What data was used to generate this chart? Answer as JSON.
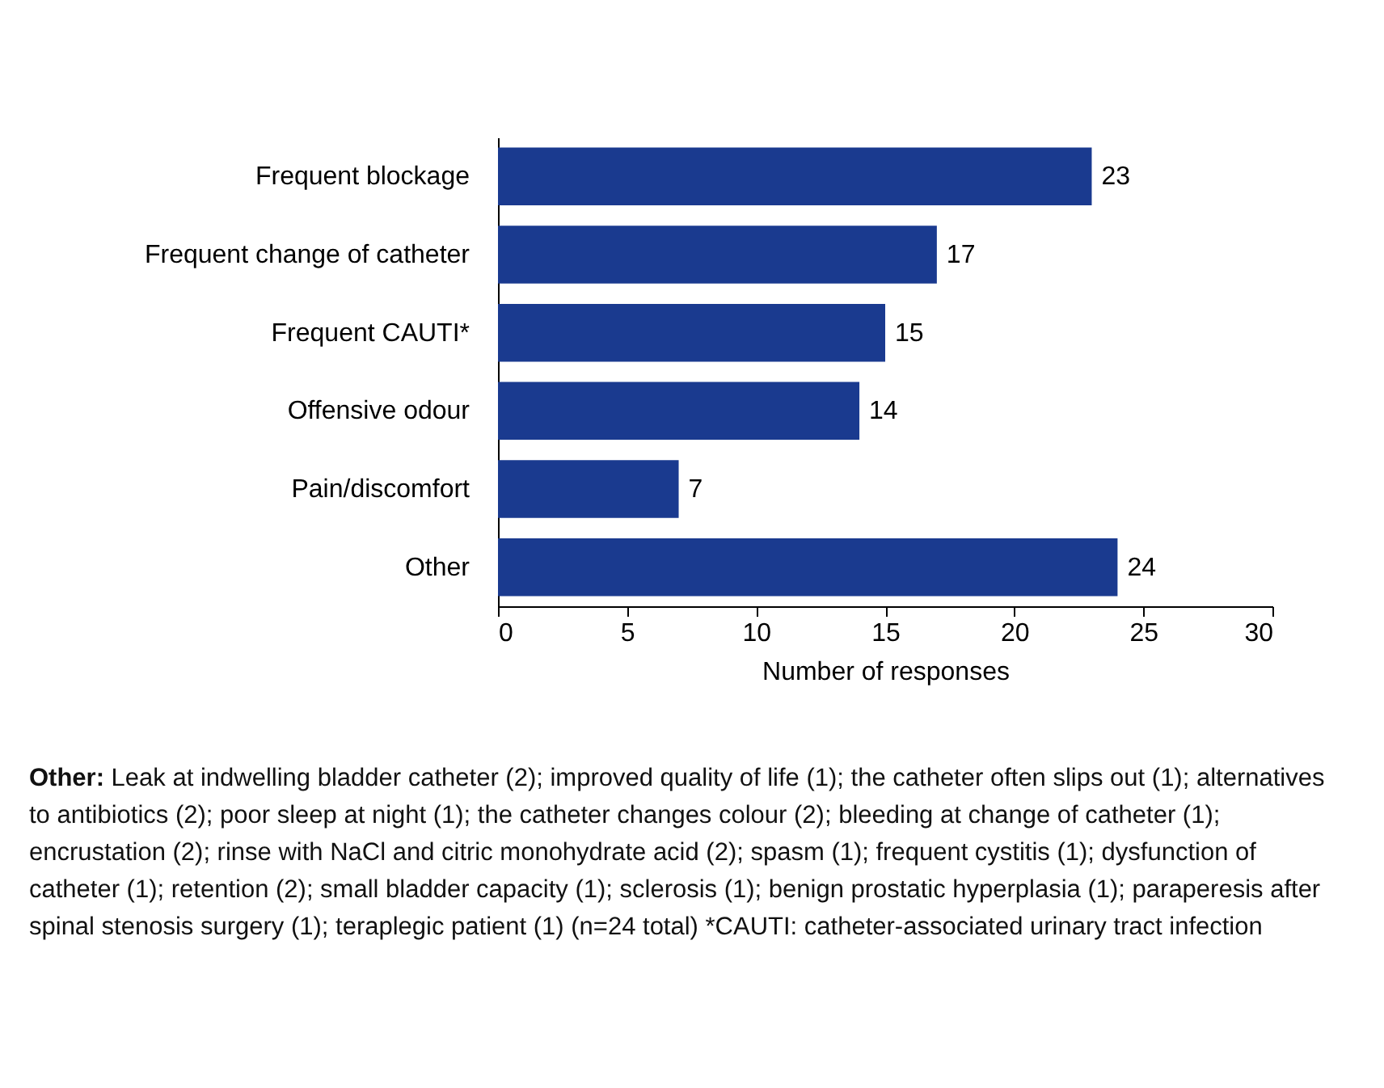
{
  "chart_data": {
    "type": "bar",
    "orientation": "horizontal",
    "xlabel": "Number of responses",
    "categories": [
      "Frequent blockage",
      "Frequent change of catheter",
      "Frequent CAUTI*",
      "Offensive odour",
      "Pain/discomfort",
      "Other"
    ],
    "values": [
      23,
      17,
      15,
      14,
      7,
      24
    ],
    "color": "#1a3a8f",
    "data_labels": true,
    "grid": false,
    "xlim": [
      0,
      30
    ],
    "xticks": [
      0,
      5,
      10,
      15,
      20,
      25,
      30
    ],
    "annotations": [
      "Other: Leak at indwelling bladder catheter (2); improved quality of life (1); the catheter often slips out (1); alternatives to antibiotics (2); poor sleep at night (1); the catheter changes colour (2); bleeding at change of catheter (1); encrustation (2); rinse with NaCl and citric monohydrate acid (2); spasm (1); frequent cystitis (1); dysfunction of catheter (1); retention (2); small bladder capacity (1); sclerosis (1); benign prostatic hyperplasia (1); paraperesis after spinal stenosis surgery (1); teraplegic patient (1) (n=24 total) *CAUTI: catheter-associated urinary tract infection"
    ]
  }
}
